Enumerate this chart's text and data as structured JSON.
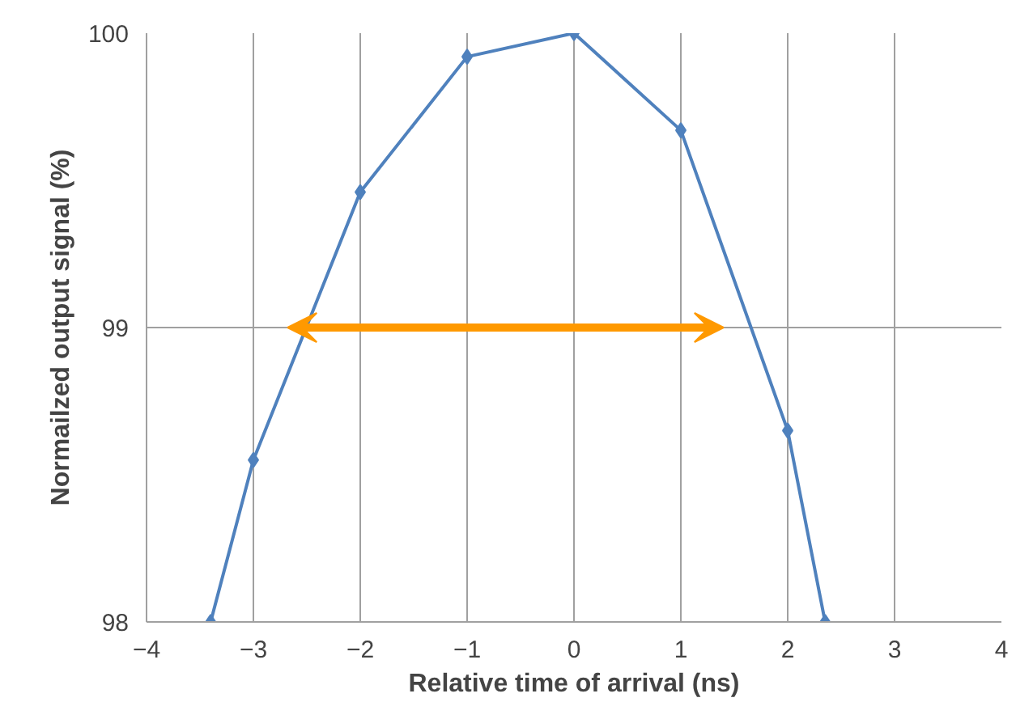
{
  "chart_data": {
    "type": "line",
    "xlabel": "Relative time of arrival (ns)",
    "ylabel": "Normailzed output signal (%)",
    "x": [
      -3.4,
      -3,
      -2,
      -1,
      0,
      1,
      2,
      2.35
    ],
    "series": [
      {
        "color": "#4f81bd",
        "values": [
          98,
          98.55,
          99.46,
          99.92,
          100,
          99.67,
          98.65,
          98
        ]
      }
    ],
    "xlim": [
      -4,
      4
    ],
    "xticks": [
      -4,
      -3,
      -2,
      -1,
      0,
      1,
      2,
      3,
      4
    ],
    "ylim": [
      98,
      100
    ],
    "yticks": [
      98,
      99,
      100
    ],
    "grid": true,
    "marker": "diamond",
    "line_style": "solid"
  }
}
